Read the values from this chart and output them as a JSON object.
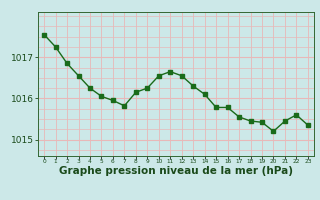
{
  "x": [
    0,
    1,
    2,
    3,
    4,
    5,
    6,
    7,
    8,
    9,
    10,
    11,
    12,
    13,
    14,
    15,
    16,
    17,
    18,
    19,
    20,
    21,
    22,
    23
  ],
  "y": [
    1017.55,
    1017.25,
    1016.85,
    1016.55,
    1016.25,
    1016.05,
    1015.95,
    1015.82,
    1016.15,
    1016.25,
    1016.55,
    1016.65,
    1016.55,
    1016.3,
    1016.1,
    1015.78,
    1015.78,
    1015.55,
    1015.45,
    1015.42,
    1015.2,
    1015.45,
    1015.6,
    1015.35
  ],
  "bg_color": "#cce8e8",
  "line_color": "#1a6b1a",
  "marker_color": "#1a6b1a",
  "grid_color_v": "#b8d4d4",
  "grid_color_h": "#e8b8b8",
  "axis_color": "#336633",
  "tick_color": "#1a4a1a",
  "label_color": "#1a4a1a",
  "xlabel": "Graphe pression niveau de la mer (hPa)",
  "yticks": [
    1015,
    1016,
    1017
  ],
  "ylim": [
    1014.6,
    1018.1
  ],
  "xlim": [
    -0.5,
    23.5
  ],
  "label_fontsize": 7.5
}
